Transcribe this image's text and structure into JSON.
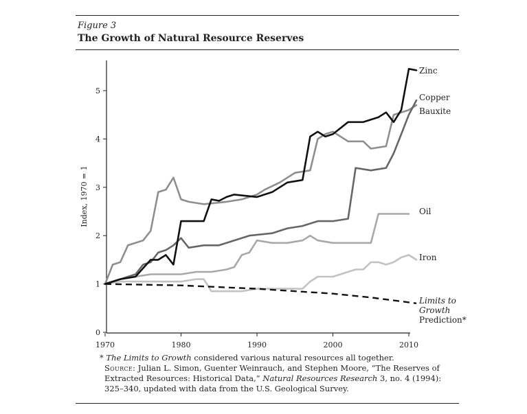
{
  "figure": {
    "label": "Figure 3",
    "title": "The Growth of Natural Resource Reserves"
  },
  "chart_data": {
    "type": "line",
    "ylabel": "Index, 1970 = 1",
    "xlabel": "",
    "xlim": [
      1970,
      2010
    ],
    "ylim": [
      0,
      5.5
    ],
    "x_ticks": [
      1970,
      1980,
      1990,
      2000,
      2010
    ],
    "y_ticks": [
      0,
      1,
      2,
      3,
      4,
      5
    ],
    "grid": false,
    "legend": "direct labels at line ends",
    "series": [
      {
        "name": "Zinc",
        "color": "#111111",
        "points": [
          [
            1970,
            1
          ],
          [
            1971,
            1.05
          ],
          [
            1972,
            1.1
          ],
          [
            1974,
            1.15
          ],
          [
            1976,
            1.5
          ],
          [
            1977,
            1.5
          ],
          [
            1978,
            1.6
          ],
          [
            1979,
            1.4
          ],
          [
            1980,
            2.3
          ],
          [
            1983,
            2.3
          ],
          [
            1984,
            2.75
          ],
          [
            1985,
            2.72
          ],
          [
            1986,
            2.8
          ],
          [
            1987,
            2.85
          ],
          [
            1990,
            2.8
          ],
          [
            1992,
            2.9
          ],
          [
            1994,
            3.1
          ],
          [
            1996,
            3.15
          ],
          [
            1997,
            4.05
          ],
          [
            1998,
            4.15
          ],
          [
            1999,
            4.05
          ],
          [
            2000,
            4.1
          ],
          [
            2002,
            4.35
          ],
          [
            2004,
            4.35
          ],
          [
            2006,
            4.45
          ],
          [
            2007,
            4.55
          ],
          [
            2008,
            4.35
          ],
          [
            2009,
            4.6
          ],
          [
            2010,
            5.45
          ],
          [
            2011,
            5.42
          ]
        ]
      },
      {
        "name": "Copper",
        "color": "#666666",
        "points": [
          [
            1970,
            1
          ],
          [
            1972,
            1.1
          ],
          [
            1974,
            1.2
          ],
          [
            1975,
            1.4
          ],
          [
            1976,
            1.45
          ],
          [
            1977,
            1.65
          ],
          [
            1978,
            1.7
          ],
          [
            1979,
            1.8
          ],
          [
            1980,
            1.95
          ],
          [
            1981,
            1.75
          ],
          [
            1983,
            1.8
          ],
          [
            1985,
            1.8
          ],
          [
            1987,
            1.9
          ],
          [
            1989,
            2.0
          ],
          [
            1992,
            2.05
          ],
          [
            1994,
            2.15
          ],
          [
            1996,
            2.2
          ],
          [
            1998,
            2.3
          ],
          [
            2000,
            2.3
          ],
          [
            2002,
            2.35
          ],
          [
            2003,
            3.4
          ],
          [
            2005,
            3.35
          ],
          [
            2007,
            3.4
          ],
          [
            2008,
            3.7
          ],
          [
            2009,
            4.1
          ],
          [
            2010,
            4.5
          ],
          [
            2011,
            4.8
          ]
        ]
      },
      {
        "name": "Bauxite",
        "color": "#8e8e8e",
        "points": [
          [
            1970,
            1
          ],
          [
            1971,
            1.4
          ],
          [
            1972,
            1.45
          ],
          [
            1973,
            1.8
          ],
          [
            1974,
            1.85
          ],
          [
            1975,
            1.9
          ],
          [
            1976,
            2.1
          ],
          [
            1977,
            2.9
          ],
          [
            1978,
            2.95
          ],
          [
            1979,
            3.2
          ],
          [
            1980,
            2.75
          ],
          [
            1981,
            2.7
          ],
          [
            1983,
            2.65
          ],
          [
            1986,
            2.7
          ],
          [
            1988,
            2.75
          ],
          [
            1990,
            2.85
          ],
          [
            1991,
            2.95
          ],
          [
            1993,
            3.1
          ],
          [
            1995,
            3.3
          ],
          [
            1997,
            3.35
          ],
          [
            1998,
            4.0
          ],
          [
            1999,
            4.1
          ],
          [
            2000,
            4.15
          ],
          [
            2002,
            3.95
          ],
          [
            2004,
            3.95
          ],
          [
            2005,
            3.8
          ],
          [
            2007,
            3.85
          ],
          [
            2008,
            4.5
          ],
          [
            2009,
            4.55
          ],
          [
            2010,
            4.6
          ],
          [
            2011,
            4.7
          ]
        ]
      },
      {
        "name": "Oil",
        "color": "#a8a8a8",
        "points": [
          [
            1970,
            1
          ],
          [
            1972,
            1.1
          ],
          [
            1974,
            1.15
          ],
          [
            1976,
            1.2
          ],
          [
            1978,
            1.2
          ],
          [
            1980,
            1.2
          ],
          [
            1982,
            1.25
          ],
          [
            1984,
            1.25
          ],
          [
            1986,
            1.3
          ],
          [
            1987,
            1.35
          ],
          [
            1988,
            1.6
          ],
          [
            1989,
            1.65
          ],
          [
            1990,
            1.9
          ],
          [
            1992,
            1.85
          ],
          [
            1994,
            1.85
          ],
          [
            1996,
            1.9
          ],
          [
            1997,
            2.0
          ],
          [
            1998,
            1.9
          ],
          [
            2000,
            1.85
          ],
          [
            2002,
            1.85
          ],
          [
            2005,
            1.85
          ],
          [
            2006,
            2.45
          ],
          [
            2008,
            2.45
          ],
          [
            2010,
            2.45
          ]
        ]
      },
      {
        "name": "Iron",
        "color": "#c2c2c2",
        "points": [
          [
            1970,
            1
          ],
          [
            1972,
            1.05
          ],
          [
            1974,
            1.05
          ],
          [
            1976,
            1.05
          ],
          [
            1978,
            1.05
          ],
          [
            1980,
            1.05
          ],
          [
            1982,
            1.1
          ],
          [
            1983,
            1.1
          ],
          [
            1984,
            0.85
          ],
          [
            1986,
            0.85
          ],
          [
            1988,
            0.85
          ],
          [
            1990,
            0.9
          ],
          [
            1992,
            0.9
          ],
          [
            1994,
            0.9
          ],
          [
            1996,
            0.9
          ],
          [
            1997,
            1.05
          ],
          [
            1998,
            1.15
          ],
          [
            1999,
            1.15
          ],
          [
            2000,
            1.15
          ],
          [
            2002,
            1.25
          ],
          [
            2003,
            1.3
          ],
          [
            2004,
            1.3
          ],
          [
            2005,
            1.45
          ],
          [
            2006,
            1.45
          ],
          [
            2007,
            1.4
          ],
          [
            2008,
            1.45
          ],
          [
            2009,
            1.55
          ],
          [
            2010,
            1.6
          ],
          [
            2011,
            1.5
          ]
        ]
      },
      {
        "name": "Limits to Growth Prediction*",
        "color": "#111111",
        "dashed": true,
        "points": [
          [
            1970,
            1
          ],
          [
            1980,
            0.97
          ],
          [
            1990,
            0.9
          ],
          [
            2000,
            0.8
          ],
          [
            2005,
            0.72
          ],
          [
            2010,
            0.62
          ],
          [
            2011,
            0.6
          ]
        ]
      }
    ],
    "labels": {
      "zinc": "Zinc",
      "copper": "Copper",
      "bauxite": "Bauxite",
      "oil": "Oil",
      "iron": "Iron",
      "limits_1": "Limits to",
      "limits_2": "Growth",
      "limits_3": "Prediction*"
    }
  },
  "notes": {
    "footnote_mark": "*",
    "footnote_italic": "The Limits to Growth",
    "footnote_rest": " considered various natural resources all together.",
    "source_label": "Source:",
    "source_a": " Julian L. Simon, Guenter Weinrauch, and Stephen Moore, “The Reserves of Extracted Resources: Historical Data,” ",
    "source_journal": "Natural Resources Research",
    "source_b": " 3, no. 4 (1994): 325–340, updated with data from the U.S. Geological Survey."
  }
}
